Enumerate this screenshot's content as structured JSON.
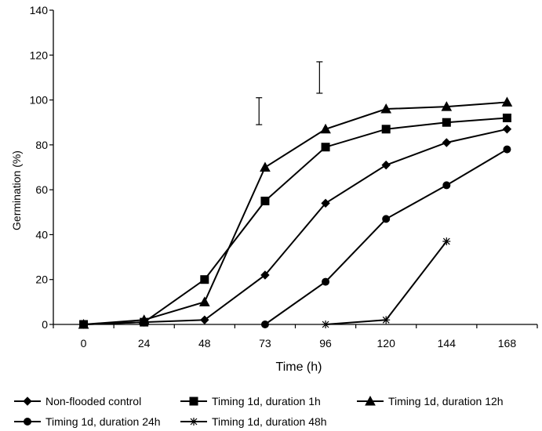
{
  "chart_data": {
    "type": "line",
    "xlabel": "Time (h)",
    "ylabel": "Germination (%)",
    "ylim": [
      0,
      140
    ],
    "yticks": [
      "0",
      "20",
      "40",
      "60",
      "80",
      "100",
      "120",
      "140"
    ],
    "categories": [
      "0",
      "24",
      "48",
      "73",
      "96",
      "120",
      "144",
      "168"
    ],
    "grid": false,
    "legend_position": "bottom",
    "series": [
      {
        "name": "Non-flooded control",
        "marker": "diamond",
        "values": [
          0,
          1,
          2,
          22,
          54,
          71,
          81,
          87
        ]
      },
      {
        "name": "Timing 1d, duration 1h",
        "marker": "square",
        "values": [
          0,
          1,
          20,
          55,
          79,
          87,
          90,
          92
        ]
      },
      {
        "name": "Timing 1d, duration 12h",
        "marker": "triangle",
        "values": [
          0,
          2,
          10,
          70,
          87,
          96,
          97,
          99
        ]
      },
      {
        "name": "Timing 1d, duration 24h",
        "marker": "circle",
        "values": [
          null,
          null,
          null,
          0,
          19,
          47,
          62,
          78
        ]
      },
      {
        "name": "Timing 1d, duration 48h",
        "marker": "star",
        "values": [
          null,
          null,
          null,
          null,
          0,
          2,
          37,
          null
        ]
      }
    ],
    "error_bars": [
      {
        "x_position": 2.9,
        "low": 89,
        "high": 101
      },
      {
        "x_position": 3.9,
        "low": 103,
        "high": 117
      }
    ]
  }
}
